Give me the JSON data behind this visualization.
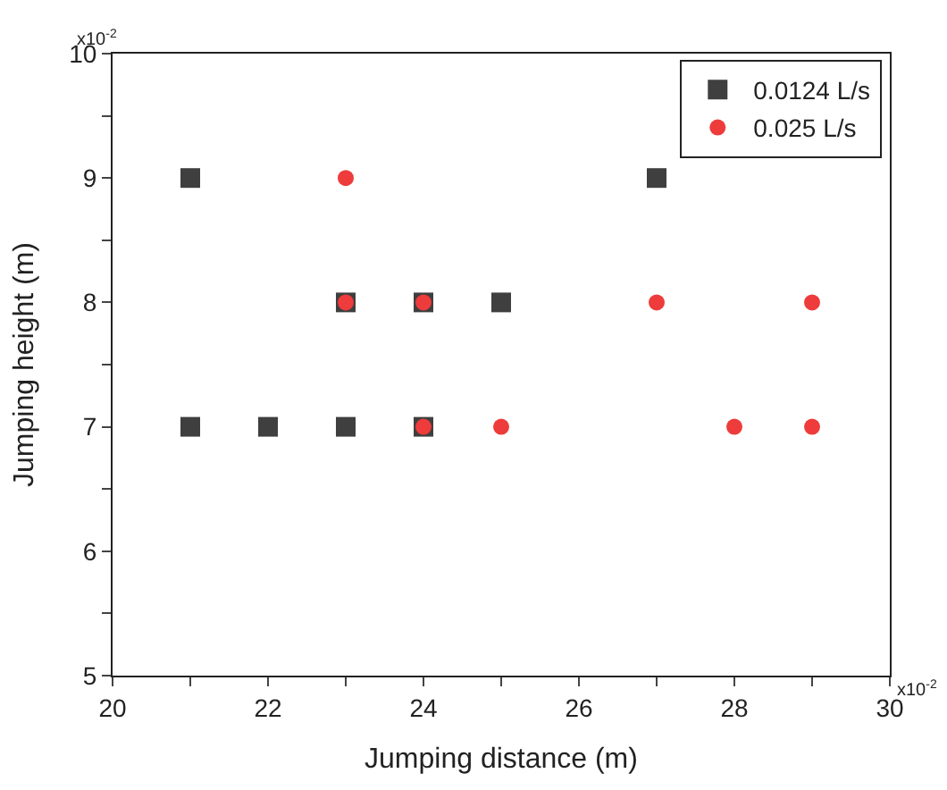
{
  "chart_data": {
    "type": "scatter",
    "xlabel": "Jumping distance (m)",
    "ylabel": "Jumping height (m)",
    "xlim": [
      20,
      30
    ],
    "ylim": [
      5,
      10
    ],
    "xticks": [
      20,
      {
        "value": 21,
        "label": null
      },
      22,
      {
        "value": 23,
        "label": null
      },
      24,
      {
        "value": 25,
        "label": null
      },
      26,
      {
        "value": 27,
        "label": null
      },
      28,
      {
        "value": 29,
        "label": null
      },
      30
    ],
    "yticks": [
      5,
      {
        "value": 5.5,
        "label": null
      },
      6,
      {
        "value": 6.5,
        "label": null
      },
      7,
      {
        "value": 7.5,
        "label": null
      },
      8,
      {
        "value": 8.5,
        "label": null
      },
      9,
      {
        "value": 9.5,
        "label": null
      },
      10
    ],
    "annotations": [
      "x10$^{-2}$",
      "x10$^{-2}$"
    ],
    "grid": false,
    "legend": "top right",
    "series": [
      {
        "name": "0.0124 L/s",
        "color": "#3f3f3f",
        "marker": "square",
        "x": [
          21,
          21,
          22,
          23,
          23,
          24,
          24,
          25,
          27
        ],
        "values": [
          9,
          7,
          7,
          8,
          7,
          8,
          7,
          8,
          9
        ]
      },
      {
        "name": "0.025 L/s",
        "color": "#ee3b3b",
        "marker": "circle",
        "x": [
          23,
          23,
          24,
          24,
          25,
          27,
          28,
          29,
          29
        ],
        "values": [
          9,
          8,
          8,
          7,
          7,
          8,
          7,
          8,
          7
        ]
      }
    ]
  }
}
